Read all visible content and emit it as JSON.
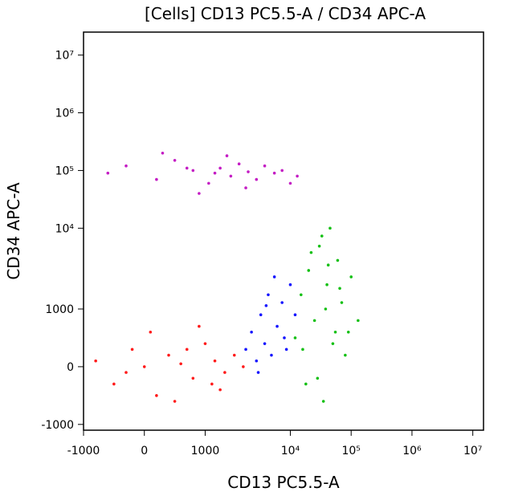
{
  "chart_data": {
    "type": "scatter",
    "title": "[Cells] CD13 PC5.5-A / CD34 APC-A",
    "xlabel": "CD13 PC5.5-A",
    "ylabel": "CD34 APC-A",
    "scale": "biexponential",
    "xlim": [
      -1000,
      15000000
    ],
    "ylim": [
      -1100,
      25000000
    ],
    "xticks": [
      -1000,
      0,
      1000,
      {
        "value": 10000,
        "label": "10⁴"
      },
      {
        "value": 100000,
        "label": "10⁵"
      },
      {
        "value": 1000000,
        "label": "10⁶"
      },
      {
        "value": 10000000,
        "label": "10⁷"
      }
    ],
    "yticks": [
      -1000,
      0,
      1000,
      {
        "value": 10000,
        "label": "10⁴"
      },
      {
        "value": 100000,
        "label": "10⁵"
      },
      {
        "value": 1000000,
        "label": "10⁶"
      },
      {
        "value": 10000000,
        "label": "10⁷"
      }
    ],
    "series": [
      {
        "color": "#c41cc4",
        "x": [
          -600,
          -300,
          200,
          500,
          800,
          1100,
          1500,
          2000,
          2500,
          3200,
          4000,
          5000,
          6500,
          8000,
          10000,
          13000,
          300,
          900,
          1800,
          3000,
          700,
          1300
        ],
        "values": [
          90000,
          120000,
          70000,
          150000,
          100000,
          60000,
          110000,
          80000,
          130000,
          95000,
          70000,
          120000,
          90000,
          100000,
          60000,
          80000,
          200000,
          40000,
          180000,
          50000,
          110000,
          90000
        ]
      },
      {
        "color": "#ff1a1a",
        "x": [
          -800,
          -500,
          -200,
          0,
          200,
          400,
          600,
          800,
          1000,
          1300,
          1700,
          2200,
          2800,
          100,
          500,
          900,
          1500,
          -300,
          700,
          1200
        ],
        "values": [
          100,
          -300,
          300,
          0,
          -500,
          200,
          50,
          -200,
          400,
          100,
          -100,
          200,
          0,
          600,
          -600,
          700,
          -400,
          -100,
          300,
          -300
        ]
      },
      {
        "color": "#1414ff",
        "x": [
          3000,
          3500,
          4000,
          4500,
          5000,
          5500,
          6000,
          7000,
          8000,
          9000,
          10000,
          12000,
          4200,
          6500,
          8500,
          5200
        ],
        "values": [
          300,
          600,
          100,
          900,
          400,
          1500,
          200,
          700,
          1200,
          300,
          2000,
          900,
          -100,
          2500,
          500,
          1100
        ]
      },
      {
        "color": "#14c014",
        "x": [
          12000,
          15000,
          18000,
          20000,
          25000,
          30000,
          35000,
          40000,
          45000,
          50000,
          60000,
          70000,
          80000,
          100000,
          130000,
          22000,
          28000,
          38000,
          55000,
          42000,
          33000,
          65000,
          16000,
          90000
        ],
        "values": [
          500,
          1500,
          -300,
          3000,
          800,
          6000,
          -600,
          2000,
          10000,
          400,
          4000,
          1200,
          200,
          2500,
          800,
          5000,
          -200,
          1000,
          600,
          3500,
          8000,
          1800,
          300,
          600
        ]
      }
    ]
  }
}
